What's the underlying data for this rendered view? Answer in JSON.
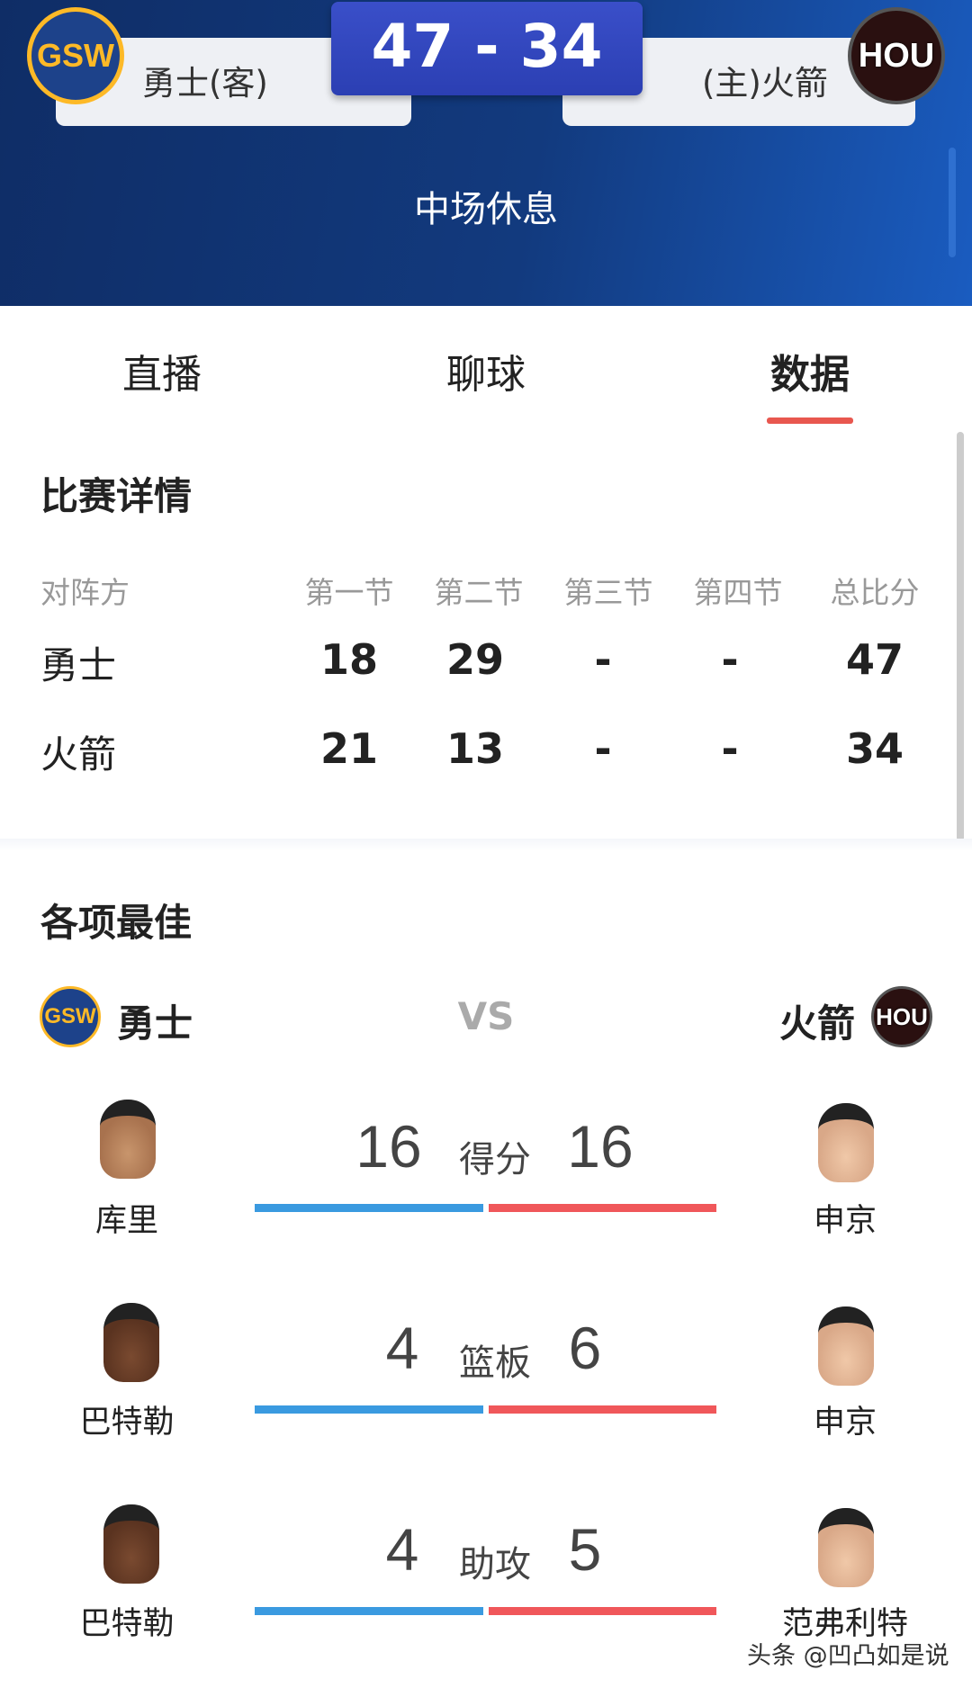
{
  "header": {
    "score": "47 - 34",
    "away": {
      "name": "勇士(客)",
      "logo": "GSW",
      "color": "#1d428a"
    },
    "home": {
      "name": "(主)火箭",
      "logo": "HOU",
      "color": "#ce1141"
    },
    "status": "中场休息"
  },
  "tabs": [
    {
      "label": "直播"
    },
    {
      "label": "聊球"
    },
    {
      "label": "数据",
      "active": true
    }
  ],
  "accent": "#e8574f",
  "match_detail": {
    "title": "比赛详情",
    "columns": [
      "对阵方",
      "第一节",
      "第二节",
      "第三节",
      "第四节",
      "总比分"
    ],
    "rows": [
      {
        "team": "勇士",
        "q1": "18",
        "q2": "29",
        "q3": "-",
        "q4": "-",
        "total": "47"
      },
      {
        "team": "火箭",
        "q1": "21",
        "q2": "13",
        "q3": "-",
        "q4": "-",
        "total": "34"
      }
    ]
  },
  "leaders": {
    "title": "各项最佳",
    "left_team": {
      "name": "勇士",
      "logo": "GSW"
    },
    "right_team": {
      "name": "火箭",
      "logo": "HOU"
    },
    "vs": "VS",
    "stats": [
      {
        "label": "得分",
        "left_value": "16",
        "right_value": "16",
        "left_player": "库里",
        "right_player": "申京"
      },
      {
        "label": "篮板",
        "left_value": "4",
        "right_value": "6",
        "left_player": "巴特勒",
        "right_player": "申京"
      },
      {
        "label": "助攻",
        "left_value": "4",
        "right_value": "5",
        "left_player": "巴特勒",
        "right_player": "范弗利特"
      }
    ],
    "bar_colors": {
      "left": "#3a9ae0",
      "right": "#f0575a"
    }
  },
  "watermark": "头条 @凹凸如是说"
}
